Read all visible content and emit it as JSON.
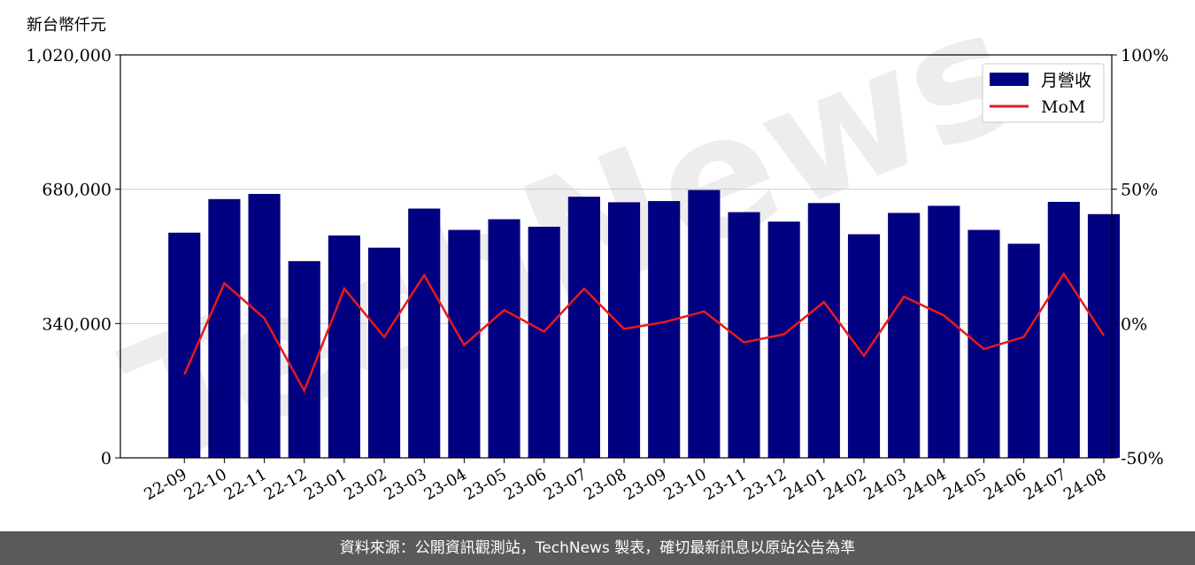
{
  "chart_data": {
    "type": "bar",
    "ylabel": "新台幣仟元",
    "categories": [
      "22-09",
      "22-10",
      "22-11",
      "22-12",
      "23-01",
      "23-02",
      "23-03",
      "23-04",
      "23-05",
      "23-06",
      "23-07",
      "23-08",
      "23-09",
      "23-10",
      "23-11",
      "23-12",
      "24-01",
      "24-02",
      "24-03",
      "24-04",
      "24-05",
      "24-06",
      "24-07",
      "24-08"
    ],
    "series": [
      {
        "name": "月營收",
        "type": "bar",
        "axis": "left",
        "color": "#000080",
        "values": [
          570000,
          655000,
          668000,
          498000,
          563000,
          532000,
          631000,
          577000,
          604000,
          585000,
          661000,
          647000,
          650000,
          678000,
          622000,
          598000,
          645000,
          566000,
          620000,
          638000,
          577000,
          542000,
          648000,
          617000
        ]
      },
      {
        "name": "MoM",
        "type": "line",
        "axis": "right",
        "color": "#e8191b",
        "values": [
          -19,
          15,
          2,
          -25,
          13,
          -5,
          18,
          -8,
          5,
          -3,
          13,
          -2,
          0.5,
          4.5,
          -7,
          -4,
          8,
          -12,
          10,
          3,
          -9.5,
          -5,
          18.5,
          -4.5
        ]
      }
    ],
    "ylim": [
      0,
      1020000
    ],
    "yticks": [
      "0",
      "340,000",
      "680,000",
      "1,020,000"
    ],
    "ytick_values": [
      0,
      340000,
      680000,
      1020000
    ],
    "y2lim": [
      -50,
      100
    ],
    "y2ticks": [
      "-50%",
      "0%",
      "50%",
      "100%"
    ],
    "y2tick_values": [
      -50,
      0,
      50,
      100
    ],
    "grid": "horizontal",
    "legend_position": "top-right"
  },
  "watermark": "TechNews",
  "footer": {
    "text": "資料來源：公開資訊觀測站，TechNews 製表，確切最新訊息以原站公告為準"
  }
}
